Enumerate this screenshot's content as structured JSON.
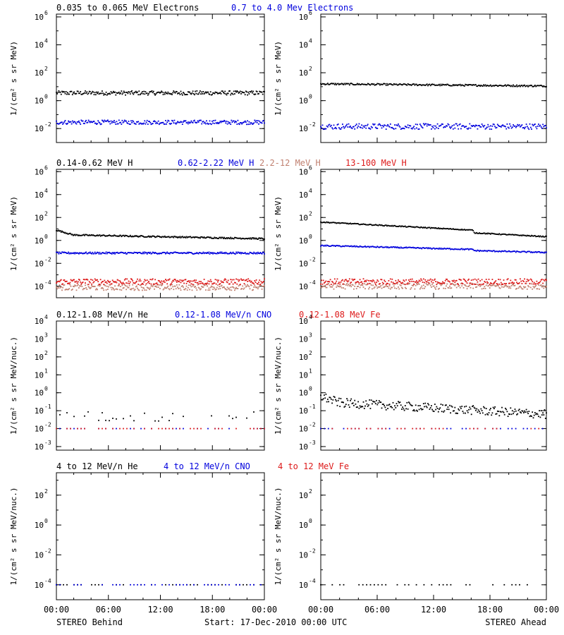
{
  "colors": {
    "frame": "#000000",
    "black": "#000000",
    "blue": "#0000dd",
    "salmon": "#c08070",
    "red": "#dd1a1a"
  },
  "footer": {
    "left": "STEREO Behind",
    "center": "Start: 17-Dec-2010 00:00 UTC",
    "right": "STEREO Ahead"
  },
  "chart_data": [
    {
      "type": "scatter",
      "panel": "electrons",
      "title_segments": [
        {
          "text": "0.035 to 0.065 MeV Electrons",
          "color": "black"
        },
        {
          "text": "0.7 to 4.0 Mev Electrons",
          "color": "blue"
        }
      ],
      "ylabel": "1/(cm² s sr MeV)",
      "yscale": "log",
      "ylim_exp": [
        -3,
        6.2
      ],
      "ytick_labels": [
        {
          "base": "10",
          "exp": "-2"
        },
        {
          "base": "10",
          "exp": "0"
        },
        {
          "base": "10",
          "exp": "2"
        },
        {
          "base": "10",
          "exp": "4"
        },
        {
          "base": "10",
          "exp": "6"
        }
      ],
      "xlim_hours": [
        0,
        24
      ],
      "xtick_labels": [],
      "sides": {
        "behind": {
          "series": [
            {
              "name": "0.035 to 0.065 MeV Electrons",
              "color": "black",
              "start_log": 0.55,
              "end_log": 0.55,
              "noise": 0.15
            },
            {
              "name": "0.7 to 4.0 Mev Electrons",
              "color": "blue",
              "start_log": -1.55,
              "end_log": -1.55,
              "noise": 0.15
            }
          ]
        },
        "ahead": {
          "series": [
            {
              "name": "0.035 to 0.065 MeV Electrons",
              "color": "black",
              "start_log": 1.2,
              "end_log": 1.05,
              "noise": 0.06
            },
            {
              "name": "0.7 to 4.0 Mev Electrons",
              "color": "blue",
              "start_log": -1.85,
              "end_log": -1.85,
              "noise": 0.2
            }
          ]
        }
      }
    },
    {
      "type": "scatter",
      "panel": "protons",
      "title_segments": [
        {
          "text": "0.14-0.62 MeV H",
          "color": "black"
        },
        {
          "text": "0.62-2.22 MeV H",
          "color": "blue"
        },
        {
          "text": "2.2-12 MeV H",
          "color": "salmon"
        },
        {
          "text": "13-100 MeV H",
          "color": "red"
        }
      ],
      "ylabel": "1/(cm² s sr MeV)",
      "yscale": "log",
      "ylim_exp": [
        -5,
        6.2
      ],
      "ytick_labels": [
        {
          "base": "10",
          "exp": "-4"
        },
        {
          "base": "10",
          "exp": "-2"
        },
        {
          "base": "10",
          "exp": "0"
        },
        {
          "base": "10",
          "exp": "2"
        },
        {
          "base": "10",
          "exp": "4"
        },
        {
          "base": "10",
          "exp": "6"
        }
      ],
      "xlim_hours": [
        0,
        24
      ],
      "xtick_labels": [],
      "sides": {
        "behind": {
          "series": [
            {
              "name": "0.14-0.62 MeV H",
              "color": "black",
              "start_log": 0.5,
              "end_log": 0.15,
              "noise": 0.06,
              "early_bump": 0.4
            },
            {
              "name": "0.62-2.22 MeV H",
              "color": "blue",
              "start_log": -1.1,
              "end_log": -1.1,
              "noise": 0.08
            },
            {
              "name": "2.2-12 MeV H",
              "color": "salmon",
              "start_log": -4.1,
              "end_log": -4.1,
              "noise": 0.25
            },
            {
              "name": "13-100 MeV H",
              "color": "red",
              "start_log": -3.6,
              "end_log": -3.6,
              "noise": 0.25
            }
          ]
        },
        "ahead": {
          "series": [
            {
              "name": "0.14-0.62 MeV H",
              "color": "black",
              "start_log": 1.6,
              "end_log": 0.55,
              "noise": 0.04,
              "step_hour": 16.3,
              "step_drop": 0.45
            },
            {
              "name": "0.62-2.22 MeV H",
              "color": "blue",
              "start_log": -0.45,
              "end_log": -0.95,
              "noise": 0.05,
              "step_hour": 16.3,
              "step_drop": 0.2
            },
            {
              "name": "2.2-12 MeV H",
              "color": "salmon",
              "start_log": -4.0,
              "end_log": -4.0,
              "noise": 0.25
            },
            {
              "name": "13-100 MeV H",
              "color": "red",
              "start_log": -3.6,
              "end_log": -3.6,
              "noise": 0.25
            }
          ]
        }
      }
    },
    {
      "type": "scatter",
      "panel": "low-energy-heavy-ions",
      "title_segments": [
        {
          "text": "0.12-1.08 MeV/n He",
          "color": "black"
        },
        {
          "text": "0.12-1.08 MeV/n CNO",
          "color": "blue"
        },
        {
          "text": "0.12-1.08 MeV Fe",
          "color": "red"
        }
      ],
      "ylabel": "1/(cm² s sr MeV/nuc.)",
      "yscale": "log",
      "ylim_exp": [
        -3.2,
        4
      ],
      "ytick_labels": [
        {
          "base": "10",
          "exp": "-3"
        },
        {
          "base": "10",
          "exp": "-2"
        },
        {
          "base": "10",
          "exp": "-1"
        },
        {
          "base": "10",
          "exp": "0"
        },
        {
          "base": "10",
          "exp": "1"
        },
        {
          "base": "10",
          "exp": "2"
        },
        {
          "base": "10",
          "exp": "3"
        },
        {
          "base": "10",
          "exp": "4"
        }
      ],
      "xlim_hours": [
        0,
        24
      ],
      "xtick_labels": [],
      "sides": {
        "behind": {
          "series": [
            {
              "name": "0.12-1.08 MeV/n He",
              "color": "black",
              "start_log": -1.35,
              "end_log": -1.35,
              "noise": 0.3,
              "sparse": true
            },
            {
              "name": "0.12-1.08 MeV/n CNO",
              "color": "blue",
              "start_log": -2.0,
              "end_log": -2.0,
              "noise": 0.0,
              "sparse": true
            },
            {
              "name": "0.12-1.08 MeV Fe",
              "color": "red",
              "start_log": -2.0,
              "end_log": -2.0,
              "noise": 0.0,
              "sparse": true
            }
          ]
        },
        "ahead": {
          "series": [
            {
              "name": "0.12-1.08 MeV/n He",
              "color": "black",
              "start_log": -0.5,
              "end_log": -1.2,
              "noise": 0.25,
              "early_bump": 0.3
            },
            {
              "name": "0.12-1.08 MeV/n CNO",
              "color": "blue",
              "start_log": -2.0,
              "end_log": -2.0,
              "noise": 0.0,
              "sparse": true
            },
            {
              "name": "0.12-1.08 MeV Fe",
              "color": "red",
              "start_log": -2.0,
              "end_log": -2.0,
              "noise": 0.0,
              "sparse": true
            }
          ]
        }
      }
    },
    {
      "type": "scatter",
      "panel": "high-energy-heavy-ions",
      "title_segments": [
        {
          "text": "4 to 12 MeV/n He",
          "color": "black"
        },
        {
          "text": "4 to 12 MeV/n CNO",
          "color": "blue"
        },
        {
          "text": "4 to 12 MeV Fe",
          "color": "red"
        }
      ],
      "ylabel": "1/(cm² s sr MeV/nuc.)",
      "yscale": "log",
      "ylim_exp": [
        -5,
        3.5
      ],
      "ytick_labels": [
        {
          "base": "10",
          "exp": "-4"
        },
        {
          "base": "10",
          "exp": "-2"
        },
        {
          "base": "10",
          "exp": "0"
        },
        {
          "base": "10",
          "exp": "2"
        }
      ],
      "xlim_hours": [
        0,
        24
      ],
      "xtick_labels": [
        "00:00",
        "06:00",
        "12:00",
        "18:00",
        "00:00"
      ],
      "sides": {
        "behind": {
          "series": [
            {
              "name": "4 to 12 MeV/n He",
              "color": "black",
              "start_log": -4.0,
              "end_log": -4.0,
              "noise": 0.0,
              "sparse": true
            },
            {
              "name": "4 to 12 MeV/n CNO",
              "color": "blue",
              "start_log": -4.0,
              "end_log": -4.0,
              "noise": 0.0,
              "sparse": true
            }
          ]
        },
        "ahead": {
          "series": [
            {
              "name": "4 to 12 MeV/n He",
              "color": "black",
              "start_log": -4.0,
              "end_log": -4.0,
              "noise": 0.0,
              "sparse": true
            }
          ]
        }
      }
    }
  ]
}
